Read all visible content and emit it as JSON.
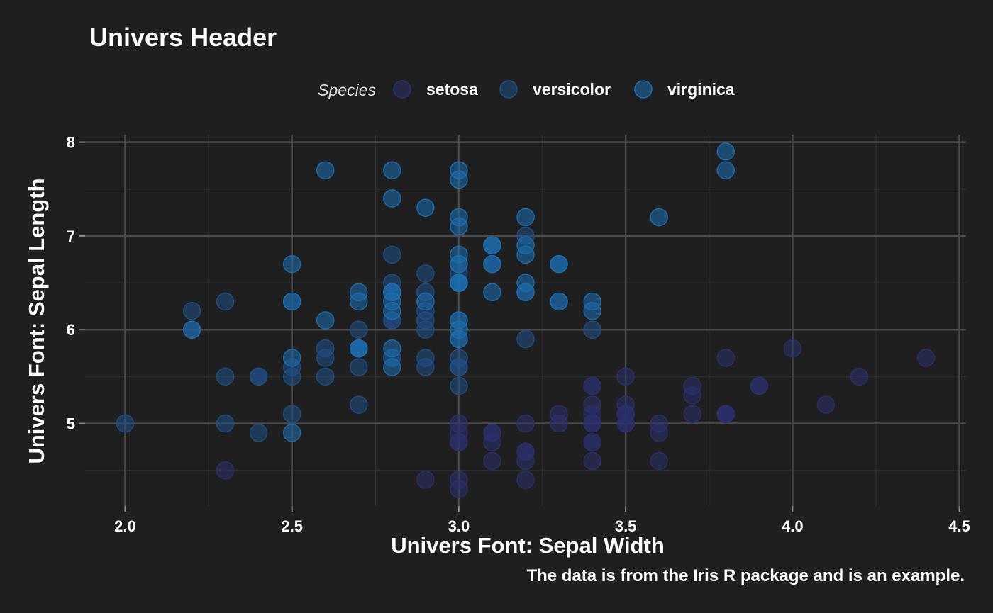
{
  "chart_data": {
    "type": "scatter",
    "title": "Univers Header",
    "xlabel": "Univers Font: Sepal Width",
    "ylabel": "Univers Font: Sepal Length",
    "caption": "The data is from the Iris R package and is an example.",
    "legend_title": "Species",
    "legend_position": "top",
    "grid": true,
    "xlim": [
      1.88,
      4.52
    ],
    "ylim": [
      4.12,
      8.08
    ],
    "x_ticks": [
      2.0,
      2.5,
      3.0,
      3.5,
      4.0,
      4.5
    ],
    "x_tick_labels": [
      "2.0",
      "2.5",
      "3.0",
      "3.5",
      "4.0",
      "4.5"
    ],
    "y_ticks": [
      5,
      6,
      7,
      8
    ],
    "y_tick_labels": [
      "5",
      "6",
      "7",
      "8"
    ],
    "series": [
      {
        "name": "setosa",
        "color": "#2c2f6e",
        "points": [
          [
            3.5,
            5.1
          ],
          [
            3.0,
            4.9
          ],
          [
            3.2,
            4.7
          ],
          [
            3.1,
            4.6
          ],
          [
            3.6,
            5.0
          ],
          [
            3.9,
            5.4
          ],
          [
            3.4,
            4.6
          ],
          [
            3.4,
            5.0
          ],
          [
            2.9,
            4.4
          ],
          [
            3.1,
            4.9
          ],
          [
            3.7,
            5.4
          ],
          [
            3.4,
            4.8
          ],
          [
            3.0,
            4.8
          ],
          [
            3.0,
            4.3
          ],
          [
            4.0,
            5.8
          ],
          [
            4.4,
            5.7
          ],
          [
            3.9,
            5.4
          ],
          [
            3.5,
            5.1
          ],
          [
            3.8,
            5.7
          ],
          [
            3.8,
            5.1
          ],
          [
            3.4,
            5.4
          ],
          [
            3.7,
            5.1
          ],
          [
            3.6,
            4.6
          ],
          [
            3.3,
            5.1
          ],
          [
            3.4,
            4.8
          ],
          [
            3.0,
            5.0
          ],
          [
            3.4,
            5.0
          ],
          [
            3.5,
            5.2
          ],
          [
            3.4,
            5.2
          ],
          [
            3.2,
            4.7
          ],
          [
            3.1,
            4.8
          ],
          [
            3.4,
            5.4
          ],
          [
            4.1,
            5.2
          ],
          [
            4.2,
            5.5
          ],
          [
            3.1,
            4.9
          ],
          [
            3.2,
            5.0
          ],
          [
            3.5,
            5.5
          ],
          [
            3.6,
            4.9
          ],
          [
            3.0,
            4.4
          ],
          [
            3.4,
            5.1
          ],
          [
            3.5,
            5.0
          ],
          [
            2.3,
            4.5
          ],
          [
            3.2,
            4.4
          ],
          [
            3.5,
            5.0
          ],
          [
            3.8,
            5.1
          ],
          [
            3.0,
            4.8
          ],
          [
            3.8,
            5.1
          ],
          [
            3.2,
            4.6
          ],
          [
            3.7,
            5.3
          ],
          [
            3.3,
            5.0
          ]
        ]
      },
      {
        "name": "versicolor",
        "color": "#1f4f86",
        "points": [
          [
            3.2,
            7.0
          ],
          [
            3.2,
            6.4
          ],
          [
            3.1,
            6.9
          ],
          [
            2.3,
            5.5
          ],
          [
            2.8,
            6.5
          ],
          [
            2.8,
            5.7
          ],
          [
            3.3,
            6.3
          ],
          [
            2.4,
            4.9
          ],
          [
            2.9,
            6.6
          ],
          [
            2.7,
            5.2
          ],
          [
            2.0,
            5.0
          ],
          [
            3.0,
            5.9
          ],
          [
            2.2,
            6.0
          ],
          [
            2.9,
            6.1
          ],
          [
            2.9,
            5.6
          ],
          [
            3.1,
            6.7
          ],
          [
            3.0,
            5.6
          ],
          [
            2.7,
            5.8
          ],
          [
            2.2,
            6.2
          ],
          [
            2.5,
            5.6
          ],
          [
            3.2,
            5.9
          ],
          [
            2.8,
            6.1
          ],
          [
            2.5,
            6.3
          ],
          [
            2.8,
            6.1
          ],
          [
            2.9,
            6.4
          ],
          [
            3.0,
            6.6
          ],
          [
            2.8,
            6.8
          ],
          [
            3.0,
            6.7
          ],
          [
            2.9,
            6.0
          ],
          [
            2.6,
            5.7
          ],
          [
            2.4,
            5.5
          ],
          [
            2.4,
            5.5
          ],
          [
            2.7,
            5.8
          ],
          [
            2.7,
            6.0
          ],
          [
            3.0,
            5.4
          ],
          [
            3.4,
            6.0
          ],
          [
            3.1,
            6.7
          ],
          [
            2.3,
            6.3
          ],
          [
            3.0,
            5.6
          ],
          [
            2.5,
            5.5
          ],
          [
            2.6,
            5.5
          ],
          [
            3.0,
            6.1
          ],
          [
            2.6,
            5.8
          ],
          [
            2.3,
            5.0
          ],
          [
            2.7,
            5.6
          ],
          [
            3.0,
            5.7
          ],
          [
            2.9,
            5.7
          ],
          [
            2.9,
            6.2
          ],
          [
            2.5,
            5.1
          ],
          [
            2.8,
            5.7
          ]
        ]
      },
      {
        "name": "virginica",
        "color": "#1c6fb0",
        "points": [
          [
            3.3,
            6.3
          ],
          [
            2.7,
            5.8
          ],
          [
            3.0,
            7.1
          ],
          [
            2.9,
            6.3
          ],
          [
            3.0,
            6.5
          ],
          [
            3.0,
            7.6
          ],
          [
            2.5,
            4.9
          ],
          [
            2.9,
            7.3
          ],
          [
            2.5,
            6.7
          ],
          [
            3.6,
            7.2
          ],
          [
            3.2,
            6.5
          ],
          [
            2.7,
            6.4
          ],
          [
            3.0,
            6.8
          ],
          [
            2.5,
            5.7
          ],
          [
            2.8,
            5.8
          ],
          [
            3.2,
            6.4
          ],
          [
            3.0,
            6.5
          ],
          [
            3.8,
            7.7
          ],
          [
            2.6,
            7.7
          ],
          [
            2.2,
            6.0
          ],
          [
            3.2,
            6.9
          ],
          [
            2.8,
            5.6
          ],
          [
            2.8,
            7.7
          ],
          [
            2.7,
            6.3
          ],
          [
            3.3,
            6.7
          ],
          [
            3.2,
            7.2
          ],
          [
            2.8,
            6.2
          ],
          [
            3.0,
            6.1
          ],
          [
            2.8,
            6.4
          ],
          [
            3.0,
            7.2
          ],
          [
            2.8,
            7.4
          ],
          [
            3.8,
            7.9
          ],
          [
            2.8,
            6.4
          ],
          [
            2.8,
            6.3
          ],
          [
            2.6,
            6.1
          ],
          [
            3.0,
            7.7
          ],
          [
            3.4,
            6.3
          ],
          [
            3.1,
            6.4
          ],
          [
            3.0,
            6.0
          ],
          [
            3.1,
            6.9
          ],
          [
            3.1,
            6.7
          ],
          [
            3.1,
            6.9
          ],
          [
            2.7,
            5.8
          ],
          [
            3.2,
            6.8
          ],
          [
            3.3,
            6.7
          ],
          [
            3.0,
            6.7
          ],
          [
            2.5,
            6.3
          ],
          [
            3.0,
            6.5
          ],
          [
            3.4,
            6.2
          ],
          [
            3.0,
            5.9
          ]
        ]
      }
    ]
  }
}
